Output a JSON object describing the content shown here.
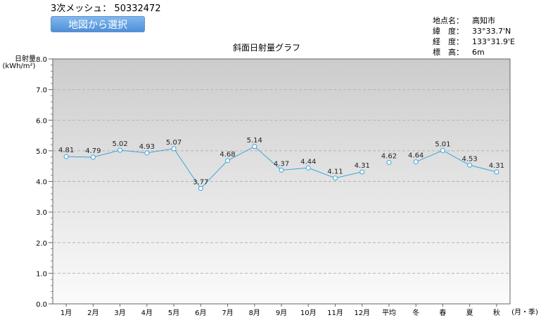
{
  "header": {
    "mesh_label": "3次メッシュ：",
    "mesh_code": "50332472",
    "map_button_label": "地図から選択"
  },
  "location_info": [
    {
      "key": "地点名：",
      "value": "高知市"
    },
    {
      "key": "緯　度：",
      "value": "33°33.7'N"
    },
    {
      "key": "経　度：",
      "value": "133°31.9'E"
    },
    {
      "key": "標　高：",
      "value": "6m"
    }
  ],
  "chart_data": {
    "type": "line",
    "title": "斜面日射量グラフ",
    "ylabel": "日射量",
    "yunit": "(kWh/m²)",
    "xlabel": "(月・季)",
    "ylim": [
      0,
      8
    ],
    "yticks": [
      "0.0",
      "1.0",
      "2.0",
      "3.0",
      "4.0",
      "5.0",
      "6.0",
      "7.0",
      "8.0"
    ],
    "grid": true,
    "categories": [
      "1月",
      "2月",
      "3月",
      "4月",
      "5月",
      "6月",
      "7月",
      "8月",
      "9月",
      "10月",
      "11月",
      "12月",
      "平均",
      "冬",
      "春",
      "夏",
      "秋"
    ],
    "values": [
      4.81,
      4.79,
      5.02,
      4.93,
      5.07,
      3.77,
      4.68,
      5.14,
      4.37,
      4.44,
      4.11,
      4.31,
      4.62,
      4.64,
      5.01,
      4.53,
      4.31
    ],
    "segments": [
      [
        0,
        11
      ],
      [
        12,
        12
      ],
      [
        13,
        16
      ]
    ],
    "colors": {
      "line": "#3aa5d8",
      "marker_fill": "#ffffff",
      "grid": "#b4b4b4",
      "bg_top": "#cccccc",
      "bg_bottom": "#fbfbfb"
    }
  }
}
